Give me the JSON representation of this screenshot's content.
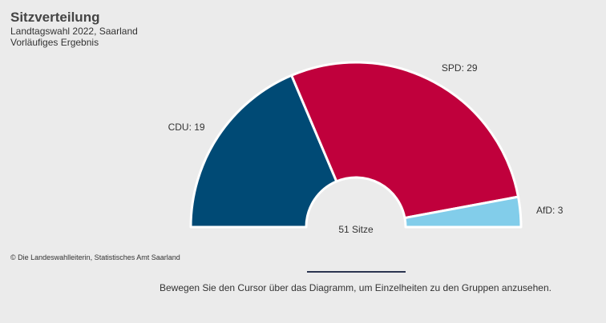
{
  "header": {
    "title": "Sitzverteilung",
    "subtitle_line1": "Landtagswahl 2022, Saarland",
    "subtitle_line2": "Vorläufiges Ergebnis"
  },
  "chart_data": {
    "type": "pie",
    "style": "parliament-semicircle",
    "total_label": "51 Sitze",
    "slices": [
      {
        "name": "CDU",
        "value": 19,
        "label": "CDU: 19",
        "color": "#004a75"
      },
      {
        "name": "SPD",
        "value": 29,
        "label": "SPD: 29",
        "color": "#c0003c"
      },
      {
        "name": "AfD",
        "value": 3,
        "label": "AfD: 3",
        "color": "#82cdea"
      }
    ]
  },
  "footer": {
    "source": "© Die Landeswahlleiterin, Statistisches Amt Saarland",
    "hint": "Bewegen Sie den Cursor über das Diagramm, um Einzelheiten zu den Gruppen anzusehen."
  }
}
